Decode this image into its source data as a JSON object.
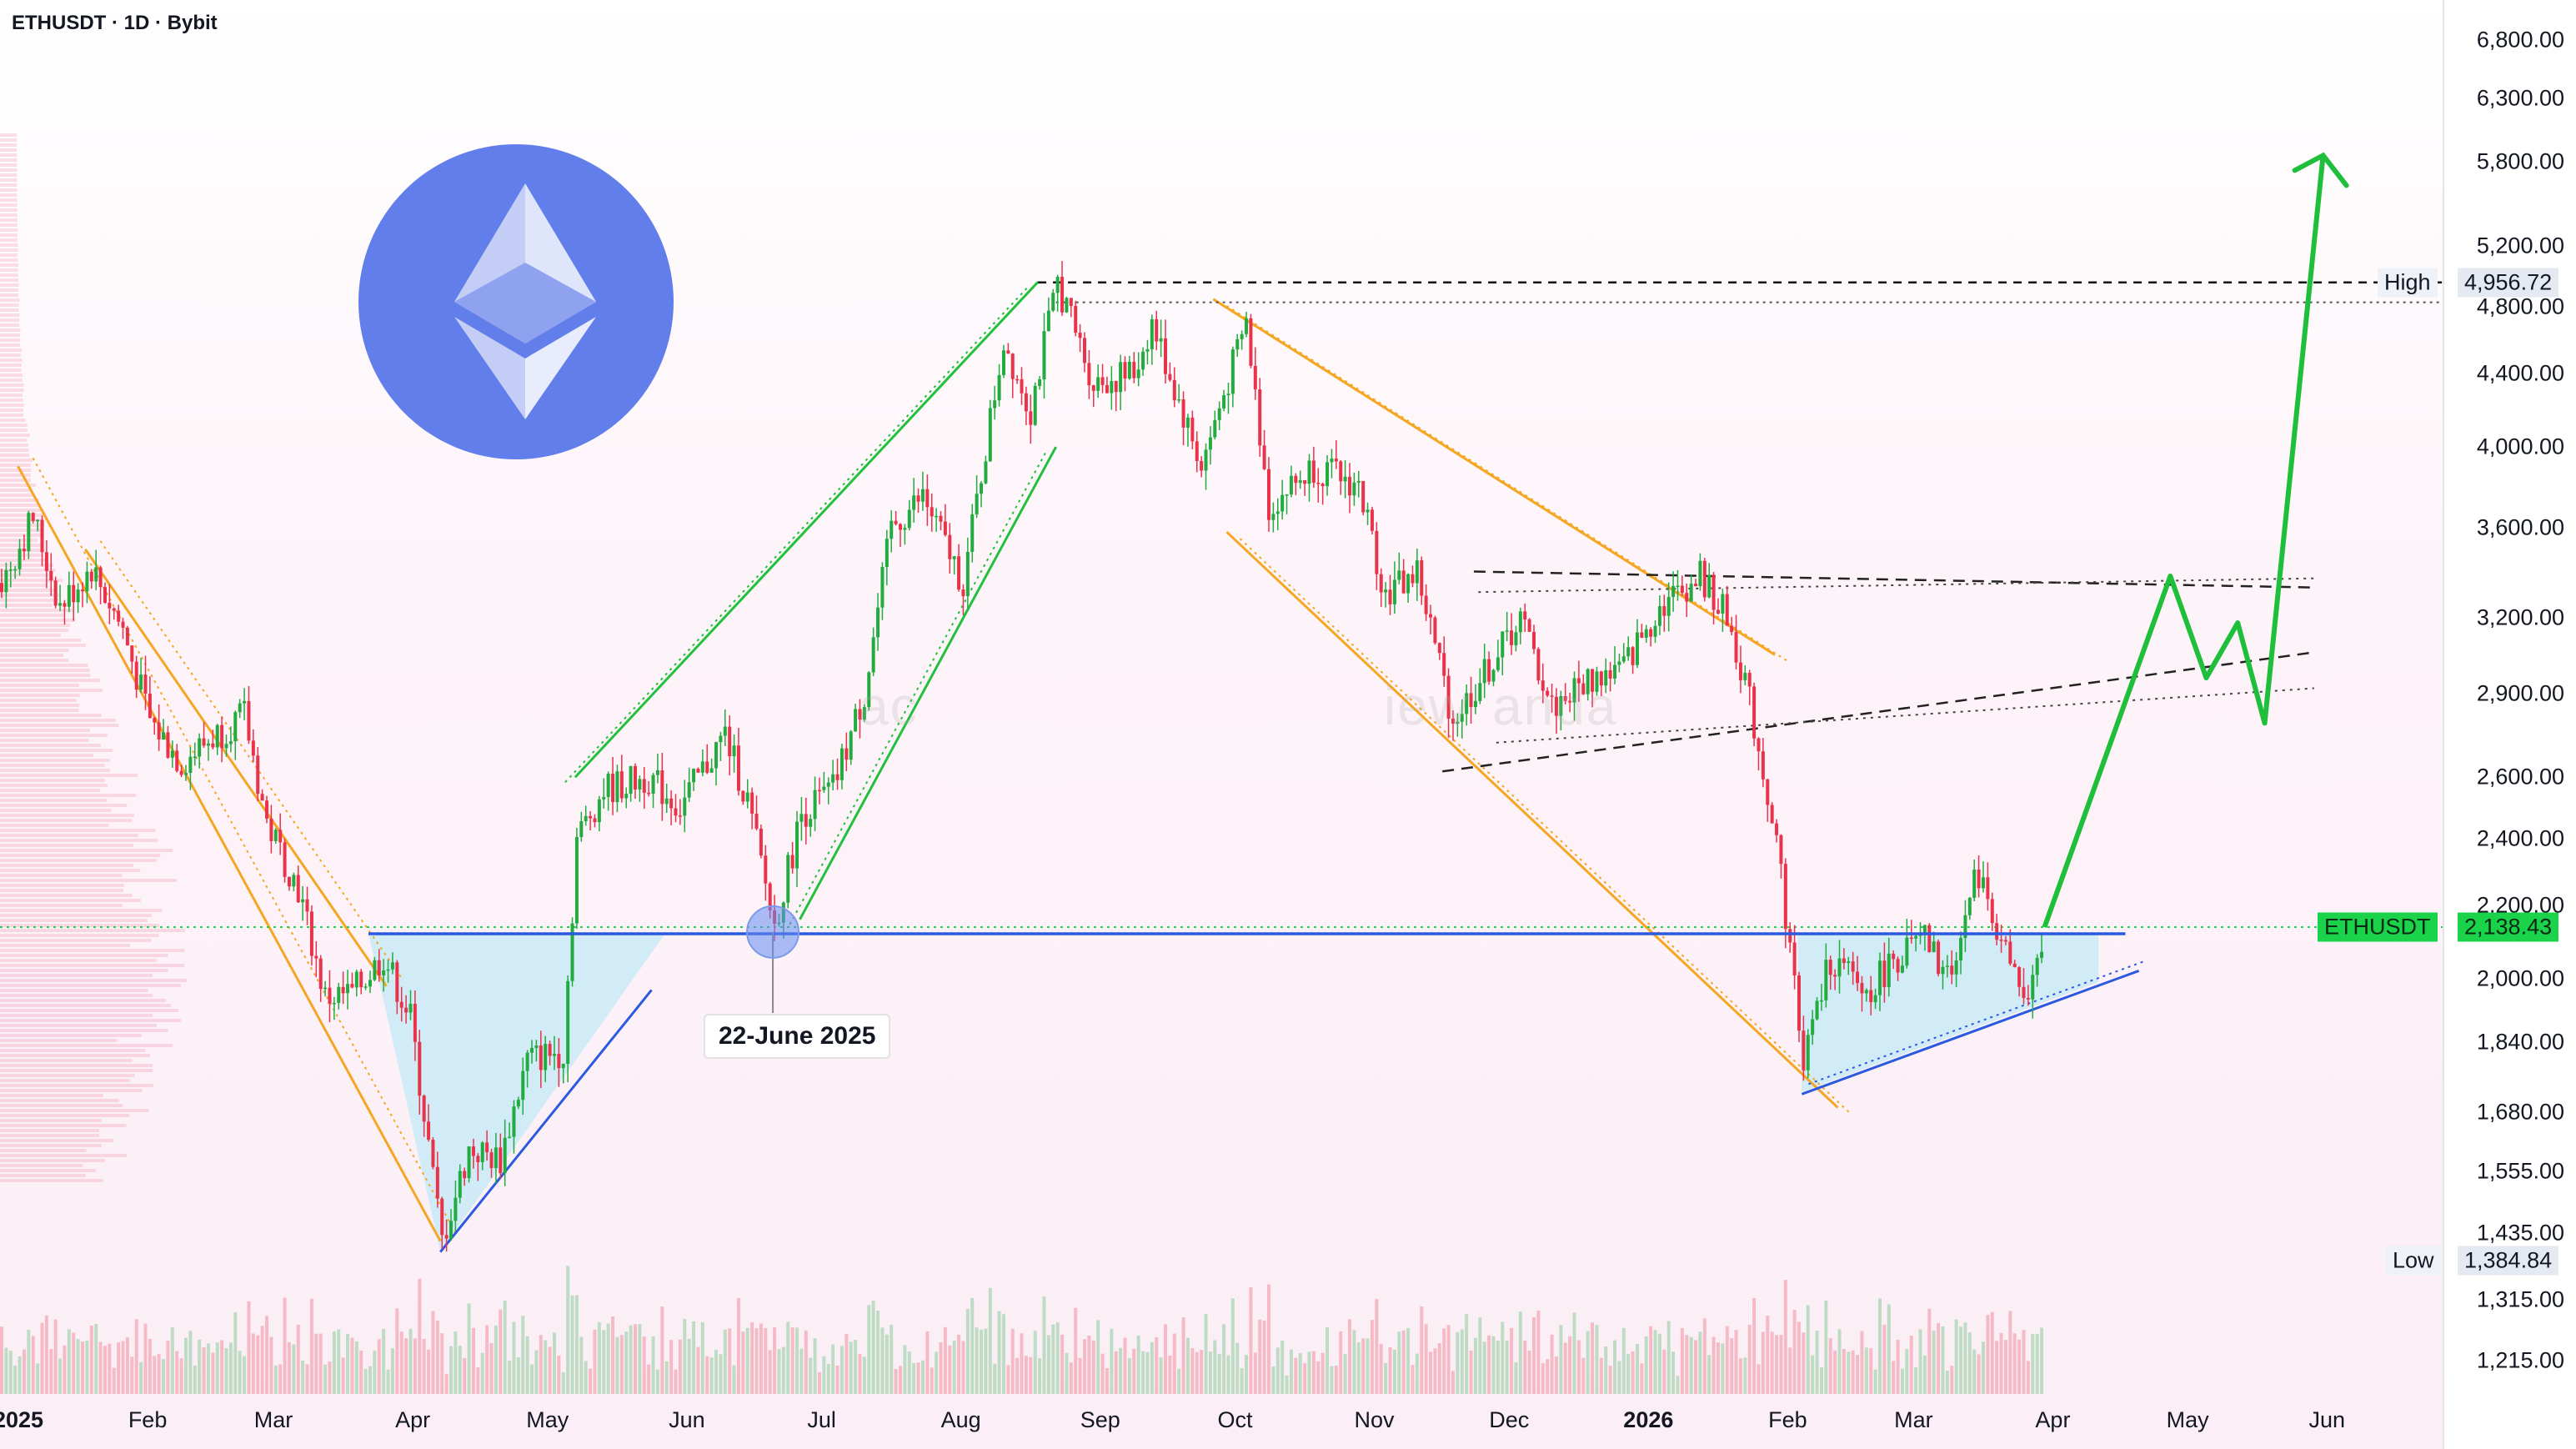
{
  "header": {
    "symbol_line": "ETHUSDT · 1D · Bybit"
  },
  "colors": {
    "up": "#22ab3f",
    "down": "#e8334a",
    "brand_logo": "#627eea",
    "support_line": "#2b59e0",
    "projection": "#1fbf3b",
    "channel_orange": "#f5a623",
    "channel_green": "#22c03d"
  },
  "icons": {
    "logo": "ethereum-logo-icon"
  },
  "callout": {
    "date_label": "22-June 2025"
  },
  "markers": {
    "high_name": "High",
    "high_value": "4,956.72",
    "low_name": "Low",
    "low_value": "1,384.84",
    "current_name": "ETHUSDT",
    "current_value": "2,138.43"
  },
  "watermark_text": [
    "ac",
    "iew",
    "anda"
  ],
  "chart_data": {
    "type": "candlestick",
    "title": "ETHUSDT · 1D · Bybit",
    "y_scale": "log",
    "ylim": [
      1160,
      7200
    ],
    "y_tick_labels": [
      "6,800.00",
      "6,300.00",
      "5,800.00",
      "5,200.00",
      "4,800.00",
      "4,400.00",
      "4,000.00",
      "3,600.00",
      "3,200.00",
      "2,900.00",
      "2,600.00",
      "2,400.00",
      "2,200.00",
      "2,000.00",
      "1,840.00",
      "1,680.00",
      "1,555.00",
      "1,435.00",
      "1,315.00",
      "1,215.00"
    ],
    "x_tick_labels": [
      "2025",
      "Feb",
      "Mar",
      "Apr",
      "May",
      "Jun",
      "Jul",
      "Aug",
      "Sep",
      "Oct",
      "Nov",
      "Dec",
      "2026",
      "Feb",
      "Mar",
      "Apr",
      "May",
      "Jun"
    ],
    "grid": false,
    "price_path": [
      [
        "2025-01-01",
        3350
      ],
      [
        "2025-01-08",
        3650
      ],
      [
        "2025-01-14",
        3250
      ],
      [
        "2025-01-21",
        3420
      ],
      [
        "2025-01-28",
        3150
      ],
      [
        "2025-02-03",
        2800
      ],
      [
        "2025-02-10",
        2650
      ],
      [
        "2025-02-17",
        2740
      ],
      [
        "2025-02-24",
        2820
      ],
      [
        "2025-03-01",
        2450
      ],
      [
        "2025-03-08",
        2250
      ],
      [
        "2025-03-14",
        1950
      ],
      [
        "2025-03-20",
        1960
      ],
      [
        "2025-03-27",
        2060
      ],
      [
        "2025-04-02",
        1900
      ],
      [
        "2025-04-09",
        1420
      ],
      [
        "2025-04-15",
        1600
      ],
      [
        "2025-04-22",
        1580
      ],
      [
        "2025-04-28",
        1800
      ],
      [
        "2025-05-06",
        1820
      ],
      [
        "2025-05-09",
        2400
      ],
      [
        "2025-05-15",
        2560
      ],
      [
        "2025-05-25",
        2600
      ],
      [
        "2025-06-01",
        2500
      ],
      [
        "2025-06-11",
        2750
      ],
      [
        "2025-06-16",
        2520
      ],
      [
        "2025-06-22",
        2140
      ],
      [
        "2025-06-28",
        2480
      ],
      [
        "2025-07-05",
        2560
      ],
      [
        "2025-07-12",
        2900
      ],
      [
        "2025-07-18",
        3600
      ],
      [
        "2025-07-25",
        3750
      ],
      [
        "2025-08-03",
        3350
      ],
      [
        "2025-08-12",
        4600
      ],
      [
        "2025-08-18",
        4200
      ],
      [
        "2025-08-24",
        4956.72
      ],
      [
        "2025-09-01",
        4350
      ],
      [
        "2025-09-10",
        4400
      ],
      [
        "2025-09-14",
        4700
      ],
      [
        "2025-09-25",
        3900
      ],
      [
        "2025-10-05",
        4700
      ],
      [
        "2025-10-10",
        3700
      ],
      [
        "2025-10-20",
        3900
      ],
      [
        "2025-10-30",
        3800
      ],
      [
        "2025-11-05",
        3300
      ],
      [
        "2025-11-12",
        3400
      ],
      [
        "2025-11-20",
        2800
      ],
      [
        "2025-11-28",
        3000
      ],
      [
        "2025-12-05",
        3200
      ],
      [
        "2025-12-12",
        2850
      ],
      [
        "2025-12-20",
        2950
      ],
      [
        "2025-12-28",
        3000
      ],
      [
        "2026-01-05",
        3250
      ],
      [
        "2026-01-14",
        3380
      ],
      [
        "2026-01-20",
        3200
      ],
      [
        "2026-01-24",
        2950
      ],
      [
        "2026-01-31",
        2400
      ],
      [
        "2026-02-06",
        1800
      ],
      [
        "2026-02-12",
        2050
      ],
      [
        "2026-02-20",
        1960
      ],
      [
        "2026-02-26",
        2050
      ],
      [
        "2026-03-05",
        2100
      ],
      [
        "2026-03-10",
        2000
      ],
      [
        "2026-03-17",
        2300
      ],
      [
        "2026-03-22",
        2100
      ],
      [
        "2026-03-28",
        1920
      ],
      [
        "2026-04-01",
        2138.43
      ]
    ],
    "projection_path": [
      [
        "2026-04-01",
        2138.43
      ],
      [
        "2026-04-29",
        3380
      ],
      [
        "2026-05-07",
        2960
      ],
      [
        "2026-05-14",
        3180
      ],
      [
        "2026-05-20",
        2790
      ],
      [
        "2026-06-02",
        5850
      ]
    ],
    "annotations": [
      {
        "type": "high",
        "price": 4956.72
      },
      {
        "type": "low",
        "price": 1384.84
      },
      {
        "type": "horizontal_support",
        "price": 2120,
        "from": "2025-03-24",
        "to": "2026-04-19"
      },
      {
        "type": "date_marker",
        "date": "2025-06-22",
        "price": 2125
      }
    ],
    "patterns": {
      "descending_channel_q1": [
        [
          "2025-01-05",
          3900,
          "2025-04-09",
          1420
        ],
        [
          "2025-01-20",
          3500,
          "2025-03-28",
          1980
        ]
      ],
      "ascending_channel": [
        [
          "2025-05-09",
          2600,
          "2025-08-20",
          4960
        ],
        [
          "2025-06-28",
          2160,
          "2025-08-24",
          4000
        ]
      ],
      "descending_channel_h2": [
        [
          "2025-09-28",
          4850,
          "2026-01-31",
          3050
        ],
        [
          "2025-10-01",
          3580,
          "2026-02-14",
          1690
        ]
      ],
      "rising_wedge": [
        [
          "2025-11-18",
          2620,
          "2026-05-31",
          3060
        ],
        [
          "2025-11-25",
          3400,
          "2026-05-31",
          3330
        ]
      ],
      "triangle_support_2025": [
        [
          "2025-04-09",
          1400,
          "2025-05-26",
          1970
        ]
      ],
      "triangle_support_2026": [
        [
          "2026-02-06",
          1720,
          "2026-04-22",
          2020
        ]
      ]
    }
  }
}
